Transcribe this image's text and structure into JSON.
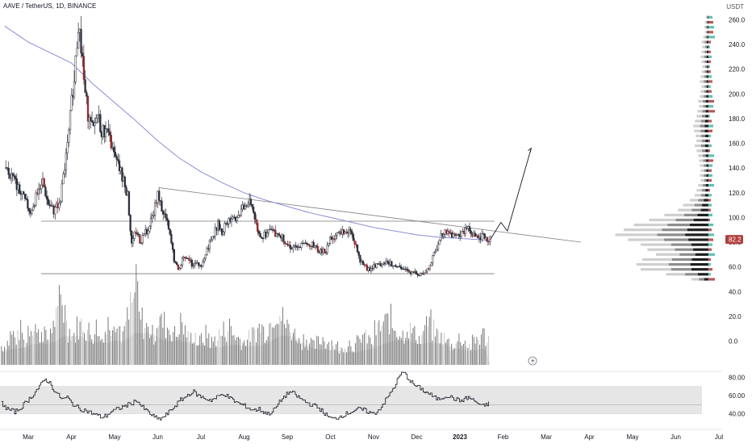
{
  "header": {
    "title": "AAVE / TetherUS, 1D, BINANCE",
    "unit": "USDT"
  },
  "current_price_label": "82.2",
  "colors": {
    "candle": "#2a2e39",
    "bear_accent": "#8e2a2a",
    "ma": "#8c8cd8",
    "trendline": "#808080",
    "level_line": "#777777",
    "volume": "#6b6b6b",
    "volume_ma": "#d9d9d9",
    "vp_dark": "#1f1f1f",
    "vp_gray": "#8d8d8d",
    "vp_light": "#cfcfcf",
    "vp_teal": "#45b5a6",
    "vp_red": "#a83c3c",
    "rsi_band": "#e6e6e6",
    "price_badge": "#b0413e"
  },
  "chart_data": [
    {
      "type": "candlestick",
      "title": "AAVE / TetherUS, 1D, BINANCE",
      "ylabel": "USDT",
      "ylim": [
        -15,
        265
      ],
      "y_ticks": [
        0,
        20,
        40,
        60,
        80,
        100,
        120,
        140,
        160,
        180,
        200,
        220,
        240,
        260
      ],
      "x_tick_labels": [
        "Mar",
        "Apr",
        "May",
        "Jun",
        "Jul",
        "Aug",
        "Sep",
        "Oct",
        "Nov",
        "Dec",
        "2023",
        "Feb",
        "Mar",
        "Apr",
        "May",
        "Jun",
        "Jul"
      ],
      "x_range_months": [
        0,
        16.8
      ],
      "price_path": [
        [
          -0.55,
          140
        ],
        [
          -0.35,
          132
        ],
        [
          -0.15,
          118
        ],
        [
          0.05,
          105
        ],
        [
          0.2,
          118
        ],
        [
          0.32,
          132
        ],
        [
          0.45,
          112
        ],
        [
          0.6,
          105
        ],
        [
          0.75,
          115
        ],
        [
          0.82,
          135
        ],
        [
          0.92,
          160
        ],
        [
          1.02,
          200
        ],
        [
          1.1,
          225
        ],
        [
          1.15,
          255
        ],
        [
          1.22,
          240
        ],
        [
          1.3,
          205
        ],
        [
          1.4,
          180
        ],
        [
          1.5,
          170
        ],
        [
          1.6,
          185
        ],
        [
          1.7,
          170
        ],
        [
          1.8,
          168
        ],
        [
          1.9,
          162
        ],
        [
          2.0,
          148
        ],
        [
          2.1,
          140
        ],
        [
          2.2,
          132
        ],
        [
          2.3,
          118
        ],
        [
          2.4,
          78
        ],
        [
          2.5,
          90
        ],
        [
          2.6,
          80
        ],
        [
          2.7,
          88
        ],
        [
          2.8,
          92
        ],
        [
          2.9,
          105
        ],
        [
          3.0,
          118
        ],
        [
          3.1,
          108
        ],
        [
          3.2,
          98
        ],
        [
          3.3,
          82
        ],
        [
          3.4,
          62
        ],
        [
          3.5,
          58
        ],
        [
          3.6,
          70
        ],
        [
          3.7,
          68
        ],
        [
          3.8,
          62
        ],
        [
          3.9,
          66
        ],
        [
          4.0,
          60
        ],
        [
          4.1,
          70
        ],
        [
          4.2,
          80
        ],
        [
          4.3,
          88
        ],
        [
          4.4,
          95
        ],
        [
          4.5,
          88
        ],
        [
          4.6,
          97
        ],
        [
          4.7,
          100
        ],
        [
          4.8,
          96
        ],
        [
          4.9,
          104
        ],
        [
          5.0,
          108
        ],
        [
          5.1,
          112
        ],
        [
          5.2,
          108
        ],
        [
          5.3,
          92
        ],
        [
          5.4,
          84
        ],
        [
          5.5,
          86
        ],
        [
          5.6,
          90
        ],
        [
          5.7,
          88
        ],
        [
          5.8,
          86
        ],
        [
          5.9,
          84
        ],
        [
          6.0,
          78
        ],
        [
          6.1,
          76
        ],
        [
          6.2,
          75
        ],
        [
          6.3,
          77
        ],
        [
          6.4,
          78
        ],
        [
          6.5,
          76
        ],
        [
          6.6,
          78
        ],
        [
          6.7,
          75
        ],
        [
          6.8,
          72
        ],
        [
          6.9,
          74
        ],
        [
          7.0,
          82
        ],
        [
          7.1,
          84
        ],
        [
          7.2,
          86
        ],
        [
          7.3,
          88
        ],
        [
          7.4,
          90
        ],
        [
          7.5,
          84
        ],
        [
          7.6,
          78
        ],
        [
          7.7,
          64
        ],
        [
          7.8,
          60
        ],
        [
          7.9,
          58
        ],
        [
          8.0,
          60
        ],
        [
          8.1,
          62
        ],
        [
          8.2,
          62
        ],
        [
          8.3,
          64
        ],
        [
          8.4,
          62
        ],
        [
          8.5,
          60
        ],
        [
          8.6,
          60
        ],
        [
          8.7,
          58
        ],
        [
          8.8,
          56
        ],
        [
          8.9,
          56
        ],
        [
          9.0,
          55
        ],
        [
          9.1,
          54
        ],
        [
          9.2,
          56
        ],
        [
          9.3,
          60
        ],
        [
          9.4,
          70
        ],
        [
          9.5,
          80
        ],
        [
          9.6,
          88
        ],
        [
          9.7,
          88
        ],
        [
          9.8,
          86
        ],
        [
          9.9,
          84
        ],
        [
          10.0,
          86
        ],
        [
          10.1,
          88
        ],
        [
          10.2,
          90
        ],
        [
          10.3,
          86
        ],
        [
          10.4,
          84
        ],
        [
          10.5,
          85
        ],
        [
          10.6,
          84
        ],
        [
          10.7,
          82
        ]
      ],
      "ma_path": [
        [
          -0.55,
          255
        ],
        [
          0.0,
          242
        ],
        [
          1.0,
          225
        ],
        [
          1.5,
          208
        ],
        [
          2.0,
          193
        ],
        [
          2.5,
          178
        ],
        [
          3.0,
          162
        ],
        [
          3.5,
          148
        ],
        [
          4.0,
          137
        ],
        [
          4.5,
          128
        ],
        [
          5.0,
          120
        ],
        [
          5.5,
          114
        ],
        [
          6.0,
          109
        ],
        [
          6.5,
          104
        ],
        [
          7.0,
          100
        ],
        [
          7.5,
          96
        ],
        [
          8.0,
          92
        ],
        [
          8.5,
          89
        ],
        [
          9.0,
          86
        ],
        [
          9.5,
          84
        ],
        [
          10.0,
          83
        ],
        [
          10.5,
          82
        ],
        [
          10.7,
          81
        ]
      ],
      "forecast_path": [
        [
          10.7,
          82
        ],
        [
          10.95,
          96
        ],
        [
          11.1,
          89
        ],
        [
          11.65,
          156
        ]
      ],
      "trendline": [
        [
          3.05,
          124
        ],
        [
          12.8,
          80
        ]
      ],
      "levels": [
        {
          "value": 97,
          "from": 0.3,
          "to": 10.8
        },
        {
          "value": 54.5,
          "from": 0.3,
          "to": 10.8
        }
      ],
      "last_price": 82.2
    },
    {
      "type": "bar",
      "series": [
        {
          "values": [
            0.25,
            0.3,
            0.4,
            0.35,
            0.45,
            0.3,
            0.5,
            0.55,
            0.4,
            0.45,
            0.35,
            0.5,
            0.6,
            0.9,
            0.7,
            0.45,
            0.4,
            0.5,
            0.55,
            0.45,
            0.4,
            0.5,
            0.35,
            0.45,
            0.55,
            0.65,
            0.5,
            0.4,
            0.6,
            0.8,
            1.0,
            0.6,
            0.5,
            0.45,
            0.4,
            0.6,
            0.55,
            0.5,
            0.45,
            0.4,
            0.55,
            0.45,
            0.35,
            0.4,
            0.3,
            0.35,
            0.4,
            0.3,
            0.35,
            0.4,
            0.45,
            0.5,
            0.4,
            0.35,
            0.3,
            0.35,
            0.4,
            0.45,
            0.5,
            0.45,
            0.55,
            0.7,
            0.75,
            0.6,
            0.5,
            0.45,
            0.4,
            0.3,
            0.35,
            0.3,
            0.25,
            0.3,
            0.35,
            0.3,
            0.3,
            0.25,
            0.2,
            0.25,
            0.3,
            0.25,
            0.3,
            0.4,
            0.35,
            0.3,
            0.45,
            0.5,
            0.55,
            0.6,
            0.5,
            0.45,
            0.4,
            0.5,
            0.45,
            0.4,
            0.35,
            0.5,
            0.55,
            0.45,
            0.4,
            0.35,
            0.3,
            0.25,
            0.3,
            0.35,
            0.3,
            0.25,
            0.3,
            0.35,
            0.4,
            0.35
          ]
        }
      ]
    },
    {
      "type": "line",
      "ylim": [
        10,
        95
      ],
      "y_ticks": [
        40,
        60,
        80
      ],
      "bands": [
        [
          40,
          70
        ]
      ],
      "midline": 50,
      "series": [
        {
          "values": [
            52,
            46,
            44,
            42,
            45,
            50,
            55,
            60,
            66,
            72,
            78,
            74,
            66,
            60,
            56,
            58,
            52,
            48,
            45,
            44,
            42,
            40,
            38,
            36,
            38,
            42,
            44,
            46,
            48,
            50,
            52,
            55,
            48,
            44,
            40,
            36,
            34,
            36,
            40,
            45,
            50,
            55,
            58,
            62,
            64,
            60,
            58,
            56,
            55,
            57,
            60,
            62,
            58,
            55,
            52,
            50,
            48,
            45,
            44,
            45,
            42,
            40,
            42,
            48,
            55,
            60,
            64,
            62,
            58,
            55,
            52,
            50,
            48,
            45,
            40,
            36,
            34,
            36,
            38,
            40,
            42,
            44,
            45,
            44,
            42,
            40,
            42,
            48,
            55,
            62,
            70,
            80,
            86,
            80,
            74,
            70,
            68,
            64,
            62,
            58,
            56,
            58,
            60,
            58,
            56,
            54,
            56,
            58,
            55,
            52,
            48,
            50,
            52
          ]
        }
      ]
    },
    {
      "type": "bar",
      "orientation": "horizontal",
      "bins": [
        {
          "price": 262,
          "vol": 3
        },
        {
          "price": 258,
          "vol": 4
        },
        {
          "price": 254,
          "vol": 5
        },
        {
          "price": 250,
          "vol": 4
        },
        {
          "price": 246,
          "vol": 6
        },
        {
          "price": 242,
          "vol": 8
        },
        {
          "price": 238,
          "vol": 7
        },
        {
          "price": 234,
          "vol": 8
        },
        {
          "price": 230,
          "vol": 9
        },
        {
          "price": 226,
          "vol": 8
        },
        {
          "price": 222,
          "vol": 7
        },
        {
          "price": 218,
          "vol": 8
        },
        {
          "price": 214,
          "vol": 9
        },
        {
          "price": 210,
          "vol": 10
        },
        {
          "price": 206,
          "vol": 8
        },
        {
          "price": 202,
          "vol": 9
        },
        {
          "price": 198,
          "vol": 10
        },
        {
          "price": 194,
          "vol": 12
        },
        {
          "price": 190,
          "vol": 11
        },
        {
          "price": 186,
          "vol": 13
        },
        {
          "price": 182,
          "vol": 14
        },
        {
          "price": 178,
          "vol": 16
        },
        {
          "price": 174,
          "vol": 18
        },
        {
          "price": 170,
          "vol": 17
        },
        {
          "price": 166,
          "vol": 15
        },
        {
          "price": 162,
          "vol": 14
        },
        {
          "price": 158,
          "vol": 16
        },
        {
          "price": 154,
          "vol": 14
        },
        {
          "price": 150,
          "vol": 12
        },
        {
          "price": 146,
          "vol": 11
        },
        {
          "price": 142,
          "vol": 10
        },
        {
          "price": 138,
          "vol": 9
        },
        {
          "price": 134,
          "vol": 10
        },
        {
          "price": 130,
          "vol": 9
        },
        {
          "price": 126,
          "vol": 12
        },
        {
          "price": 122,
          "vol": 14
        },
        {
          "price": 118,
          "vol": 16
        },
        {
          "price": 114,
          "vol": 22
        },
        {
          "price": 110,
          "vol": 30
        },
        {
          "price": 106,
          "vol": 36
        },
        {
          "price": 102,
          "vol": 52
        },
        {
          "price": 98,
          "vol": 70
        },
        {
          "price": 94,
          "vol": 88
        },
        {
          "price": 90,
          "vol": 100
        },
        {
          "price": 86,
          "vol": 110
        },
        {
          "price": 82,
          "vol": 95
        },
        {
          "price": 78,
          "vol": 80
        },
        {
          "price": 74,
          "vol": 72
        },
        {
          "price": 70,
          "vol": 62
        },
        {
          "price": 66,
          "vol": 78
        },
        {
          "price": 62,
          "vol": 85
        },
        {
          "price": 58,
          "vol": 80
        },
        {
          "price": 54,
          "vol": 50
        },
        {
          "price": 50,
          "vol": 20
        }
      ]
    }
  ]
}
